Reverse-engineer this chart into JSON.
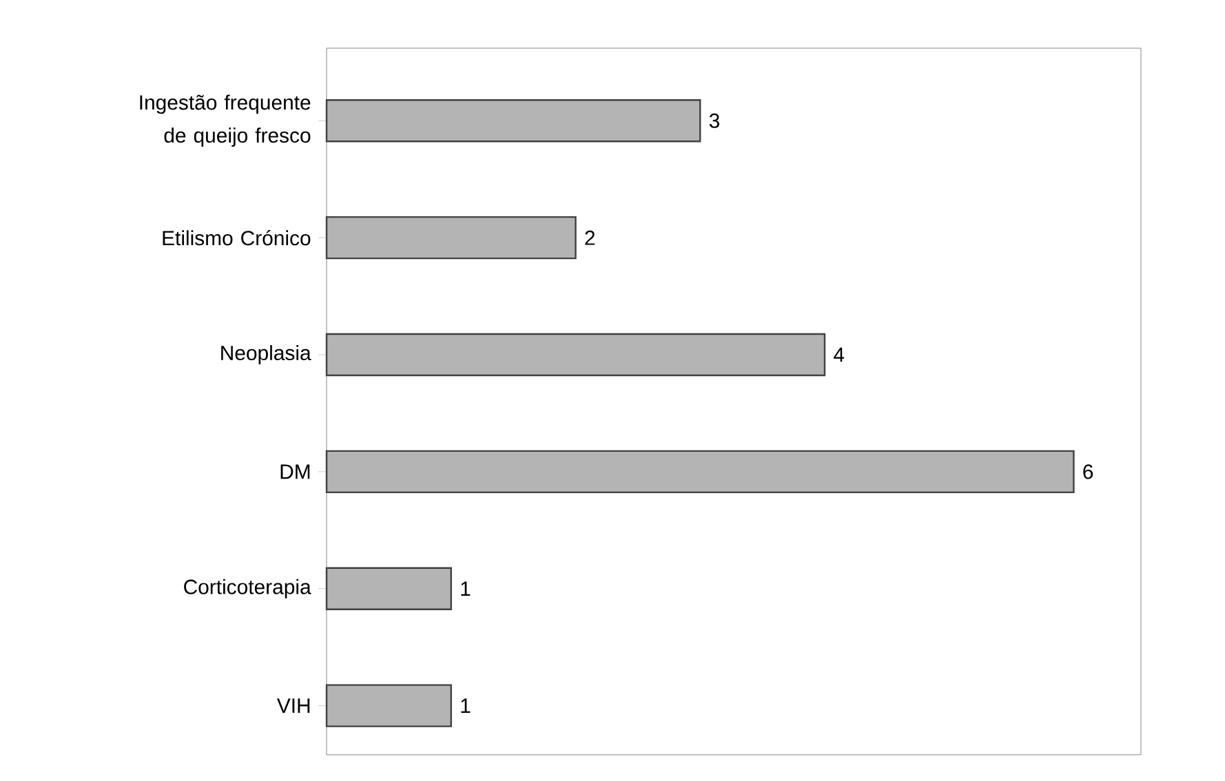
{
  "chart_data": {
    "type": "bar",
    "orientation": "horizontal",
    "categories": [
      "Ingestão frequente de queijo fresco",
      "Etilismo Crónico",
      "Neoplasia",
      "DM",
      "Corticoterapia",
      "VIH"
    ],
    "values": [
      3,
      2,
      4,
      6,
      1,
      1
    ],
    "color": "#b4b4b4",
    "data_labels": true
  }
}
